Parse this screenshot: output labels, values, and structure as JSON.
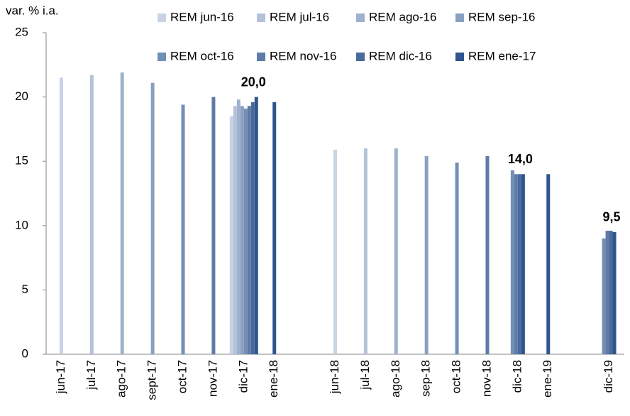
{
  "chart_data": {
    "type": "bar",
    "y_label": "var. % i.a.",
    "categories": [
      "jun-17",
      "jul-17",
      "ago-17",
      "sept-17",
      "oct-17",
      "nov-17",
      "dic-17",
      "ene-18",
      null,
      "jun-18",
      "jul-18",
      "ago-18",
      "sep-18",
      "oct-18",
      "nov-18",
      "dic-18",
      "ene-19",
      null,
      "dic-19"
    ],
    "series": [
      {
        "name": "REM jun-16",
        "color": "#c9d3e4",
        "values": [
          21.5,
          null,
          null,
          null,
          null,
          null,
          18.5,
          null,
          null,
          15.9,
          null,
          null,
          null,
          null,
          null,
          null,
          null,
          null,
          null
        ]
      },
      {
        "name": "REM jul-16",
        "color": "#b4c2d9",
        "values": [
          null,
          21.7,
          null,
          null,
          null,
          null,
          19.3,
          null,
          null,
          null,
          16.0,
          null,
          null,
          null,
          null,
          null,
          null,
          null,
          null
        ]
      },
      {
        "name": "REM ago-16",
        "color": "#9fb1cd",
        "values": [
          null,
          null,
          21.9,
          null,
          null,
          null,
          19.8,
          null,
          null,
          null,
          null,
          16.0,
          null,
          null,
          null,
          null,
          null,
          null,
          null
        ]
      },
      {
        "name": "REM sep-16",
        "color": "#8aa0c1",
        "values": [
          null,
          null,
          null,
          21.1,
          null,
          null,
          19.3,
          null,
          null,
          null,
          null,
          null,
          15.4,
          null,
          null,
          null,
          null,
          null,
          null
        ]
      },
      {
        "name": "REM oct-16",
        "color": "#748fb5",
        "values": [
          null,
          null,
          null,
          null,
          19.4,
          null,
          19.1,
          null,
          null,
          null,
          null,
          null,
          null,
          14.9,
          null,
          14.3,
          null,
          null,
          9.0
        ]
      },
      {
        "name": "REM nov-16",
        "color": "#5f7ca8",
        "values": [
          null,
          null,
          null,
          null,
          null,
          20.0,
          19.3,
          null,
          null,
          null,
          null,
          null,
          null,
          null,
          15.4,
          14.0,
          null,
          null,
          9.6
        ]
      },
      {
        "name": "REM dic-16",
        "color": "#4a6a9c",
        "values": [
          null,
          null,
          null,
          null,
          null,
          null,
          19.6,
          null,
          null,
          null,
          null,
          null,
          null,
          null,
          null,
          14.0,
          null,
          null,
          9.6
        ]
      },
      {
        "name": "REM ene-17",
        "color": "#2f5590",
        "values": [
          null,
          null,
          null,
          null,
          null,
          null,
          20.0,
          19.6,
          null,
          null,
          null,
          null,
          null,
          null,
          null,
          14.0,
          14.0,
          null,
          9.5
        ],
        "value_labels": [
          null,
          null,
          null,
          null,
          null,
          null,
          "20,0",
          null,
          null,
          null,
          null,
          null,
          null,
          null,
          null,
          "14,0",
          null,
          null,
          "9,5"
        ]
      }
    ],
    "ylim": [
      0,
      25
    ],
    "yticks": [
      0,
      5,
      10,
      15,
      20,
      25
    ],
    "grid": false
  }
}
